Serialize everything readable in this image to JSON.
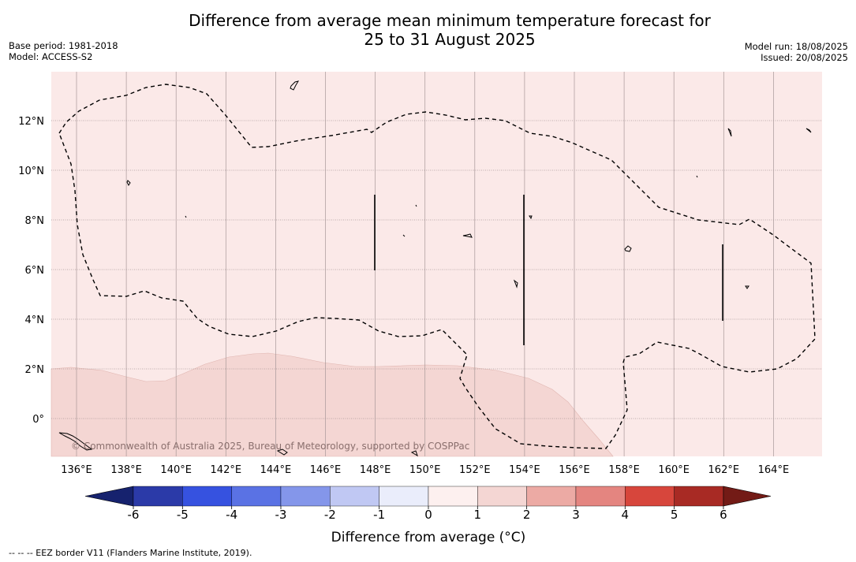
{
  "title": {
    "line1": "Difference from average mean minimum temperature forecast for",
    "line2": "25 to 31 August 2025"
  },
  "meta": {
    "base_period": "Base period: 1981-2018",
    "model": "Model: ACCESS-S2",
    "model_run": "Model run: 18/08/2025",
    "issued": "Issued: 20/08/2025"
  },
  "map": {
    "longitude_labels": [
      "136°E",
      "138°E",
      "140°E",
      "142°E",
      "144°E",
      "146°E",
      "148°E",
      "150°E",
      "152°E",
      "154°E",
      "156°E",
      "158°E",
      "160°E",
      "162°E",
      "164°E"
    ],
    "latitude_labels": [
      "12°N",
      "10°N",
      "8°N",
      "6°N",
      "4°N",
      "2°N",
      "0°"
    ],
    "copyright": "© Commonwealth of Australia 2025, Bureau of Meteorology, supported by COSPPac",
    "background_color": "#fbe9e8",
    "warm_region_color": "#f4d6d3"
  },
  "colorbar": {
    "label": "Difference from average (°C)",
    "ticks": [
      "-6",
      "-5",
      "-4",
      "-3",
      "-2",
      "-1",
      "0",
      "1",
      "2",
      "3",
      "4",
      "5",
      "6"
    ],
    "colors": [
      "#16226e",
      "#2b3aa8",
      "#3652e0",
      "#5a72e4",
      "#8496ea",
      "#c0c8f3",
      "#eaedfb",
      "#fdf0ef",
      "#f4d6d3",
      "#ecaaa4",
      "#e48580",
      "#d7463c",
      "#a82a24",
      "#731b16"
    ]
  },
  "footnote": "-- -- -- EEZ border V11 (Flanders Marine Institute, 2019)."
}
